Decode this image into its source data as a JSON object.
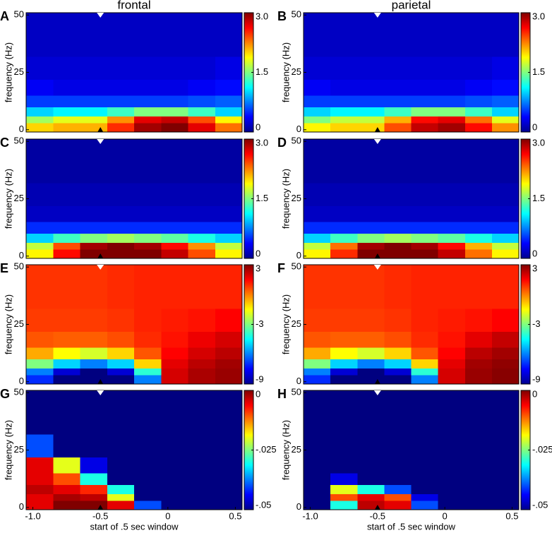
{
  "chart_data": [
    {
      "type": "heatmap",
      "panel": "A",
      "title": "frontal",
      "ylabel": "frequency (Hz)",
      "xlim": [
        -1.05,
        0.55
      ],
      "ylim": [
        -1,
        51
      ],
      "yticks": [
        0,
        25,
        50
      ],
      "marker_x": -0.5,
      "xbins": [
        -1.05,
        -0.85,
        -0.65,
        -0.45,
        -0.25,
        -0.05,
        0.15,
        0.35,
        0.55
      ],
      "ybins": [
        -1,
        3,
        6,
        10,
        15,
        22,
        32,
        51
      ],
      "clim": [
        0,
        3
      ],
      "cticks": [
        0,
        1.5,
        {
          "value": 3,
          "label": "3.0"
        }
      ],
      "z": [
        [
          2.0,
          2.1,
          2.1,
          2.5,
          2.9,
          3.0,
          2.7,
          2.3
        ],
        [
          1.6,
          1.8,
          1.8,
          2.2,
          2.7,
          2.8,
          2.4,
          1.9
        ],
        [
          1.0,
          1.1,
          1.1,
          1.3,
          1.5,
          1.5,
          1.3,
          1.0
        ],
        [
          0.55,
          0.55,
          0.55,
          0.55,
          0.55,
          0.55,
          0.6,
          0.65
        ],
        [
          0.35,
          0.3,
          0.3,
          0.3,
          0.3,
          0.3,
          0.35,
          0.4
        ],
        [
          0.25,
          0.25,
          0.25,
          0.25,
          0.25,
          0.25,
          0.25,
          0.3
        ],
        [
          0.2,
          0.2,
          0.2,
          0.2,
          0.2,
          0.2,
          0.2,
          0.2
        ]
      ]
    },
    {
      "type": "heatmap",
      "panel": "B",
      "title": "parietal",
      "ylabel": "frequency (Hz)",
      "xlim": [
        -1.05,
        0.55
      ],
      "ylim": [
        -1,
        51
      ],
      "yticks": [
        0,
        25,
        50
      ],
      "marker_x": -0.5,
      "xbins": [
        -1.05,
        -0.85,
        -0.65,
        -0.45,
        -0.25,
        -0.05,
        0.15,
        0.35,
        0.55
      ],
      "ybins": [
        -1,
        3,
        6,
        10,
        15,
        22,
        32,
        51
      ],
      "clim": [
        0,
        3
      ],
      "cticks": [
        0,
        1.5,
        {
          "value": 3,
          "label": "3.0"
        }
      ],
      "z": [
        [
          1.9,
          2.0,
          2.0,
          2.4,
          2.8,
          2.9,
          2.6,
          2.2
        ],
        [
          1.5,
          1.7,
          1.7,
          2.1,
          2.6,
          2.7,
          2.3,
          1.8
        ],
        [
          1.0,
          1.1,
          1.1,
          1.3,
          1.5,
          1.5,
          1.3,
          1.0
        ],
        [
          0.55,
          0.55,
          0.55,
          0.55,
          0.55,
          0.55,
          0.6,
          0.65
        ],
        [
          0.35,
          0.3,
          0.3,
          0.3,
          0.3,
          0.3,
          0.35,
          0.4
        ],
        [
          0.25,
          0.25,
          0.25,
          0.25,
          0.25,
          0.25,
          0.25,
          0.3
        ],
        [
          0.2,
          0.2,
          0.2,
          0.2,
          0.2,
          0.2,
          0.2,
          0.2
        ]
      ]
    },
    {
      "type": "heatmap",
      "panel": "C",
      "ylabel": "frequency (Hz)",
      "xlim": [
        -1.05,
        0.55
      ],
      "ylim": [
        -1,
        51
      ],
      "yticks": [
        0,
        25,
        50
      ],
      "marker_x": -0.5,
      "xbins": [
        -1.05,
        -0.85,
        -0.65,
        -0.45,
        -0.25,
        -0.05,
        0.15,
        0.35,
        0.55
      ],
      "ybins": [
        -1,
        3,
        6,
        10,
        15,
        22,
        32,
        51
      ],
      "clim": [
        0,
        3
      ],
      "cticks": [
        0,
        1.5,
        {
          "value": 3,
          "label": "3.0"
        }
      ],
      "z": [
        [
          1.9,
          2.6,
          3.0,
          3.0,
          3.0,
          2.8,
          2.4,
          1.9
        ],
        [
          1.7,
          2.4,
          2.9,
          3.0,
          2.9,
          2.6,
          2.2,
          1.7
        ],
        [
          1.0,
          1.3,
          1.5,
          1.6,
          1.5,
          1.4,
          1.2,
          1.0
        ],
        [
          0.5,
          0.5,
          0.5,
          0.5,
          0.5,
          0.5,
          0.5,
          0.5
        ],
        [
          0.2,
          0.2,
          0.2,
          0.2,
          0.2,
          0.2,
          0.2,
          0.2
        ],
        [
          0.15,
          0.15,
          0.15,
          0.15,
          0.15,
          0.15,
          0.15,
          0.15
        ],
        [
          0.1,
          0.1,
          0.1,
          0.1,
          0.1,
          0.1,
          0.1,
          0.1
        ]
      ]
    },
    {
      "type": "heatmap",
      "panel": "D",
      "ylabel": "frequency (Hz)",
      "xlim": [
        -1.05,
        0.55
      ],
      "ylim": [
        -1,
        51
      ],
      "yticks": [
        0,
        25,
        50
      ],
      "marker_x": -0.5,
      "xbins": [
        -1.05,
        -0.85,
        -0.65,
        -0.45,
        -0.25,
        -0.05,
        0.15,
        0.35,
        0.55
      ],
      "ybins": [
        -1,
        3,
        6,
        10,
        15,
        22,
        32,
        51
      ],
      "clim": [
        0,
        3
      ],
      "cticks": [
        0,
        1.5,
        {
          "value": 3,
          "label": "3.0"
        }
      ],
      "z": [
        [
          1.9,
          2.5,
          3.0,
          3.0,
          3.0,
          2.8,
          2.3,
          1.9
        ],
        [
          1.7,
          2.3,
          2.9,
          3.0,
          2.9,
          2.6,
          2.1,
          1.7
        ],
        [
          1.0,
          1.3,
          1.5,
          1.6,
          1.5,
          1.4,
          1.2,
          1.0
        ],
        [
          0.5,
          0.5,
          0.5,
          0.5,
          0.5,
          0.5,
          0.5,
          0.5
        ],
        [
          0.2,
          0.2,
          0.2,
          0.2,
          0.2,
          0.2,
          0.2,
          0.2
        ],
        [
          0.15,
          0.15,
          0.15,
          0.15,
          0.15,
          0.15,
          0.15,
          0.15
        ],
        [
          0.1,
          0.1,
          0.1,
          0.1,
          0.1,
          0.1,
          0.1,
          0.1
        ]
      ]
    },
    {
      "type": "heatmap",
      "panel": "E",
      "ylabel": "frequency (Hz)",
      "xlim": [
        -1.05,
        0.55
      ],
      "ylim": [
        -1,
        51
      ],
      "yticks": [
        0,
        25,
        50
      ],
      "marker_x": -0.5,
      "xbins": [
        -1.05,
        -0.85,
        -0.65,
        -0.45,
        -0.25,
        -0.05,
        0.15,
        0.35,
        0.55
      ],
      "ybins": [
        -1,
        3,
        6,
        10,
        15,
        22,
        32,
        51
      ],
      "clim": [
        -9,
        3
      ],
      "cticks": [
        -9,
        -3,
        3
      ],
      "z": [
        [
          -7,
          -9,
          -9,
          -9,
          -6,
          2,
          2.5,
          2.7
        ],
        [
          -6,
          -8,
          -9,
          -8,
          -4,
          2,
          2.5,
          2.7
        ],
        [
          -3,
          -5,
          -6,
          -5,
          -1,
          1.8,
          2.3,
          2.6
        ],
        [
          -0.5,
          -1.5,
          -2,
          -1,
          0.5,
          1.5,
          2,
          2.3
        ],
        [
          0.5,
          0.4,
          0.4,
          0.6,
          1.0,
          1.3,
          1.7,
          2.0
        ],
        [
          0.8,
          0.8,
          0.8,
          0.9,
          1.1,
          1.2,
          1.3,
          1.5
        ],
        [
          0.9,
          0.9,
          0.9,
          1.0,
          1.1,
          1.1,
          1.1,
          1.1
        ]
      ]
    },
    {
      "type": "heatmap",
      "panel": "F",
      "ylabel": "frequency (Hz)",
      "xlim": [
        -1.05,
        0.55
      ],
      "ylim": [
        -1,
        51
      ],
      "yticks": [
        0,
        25,
        50
      ],
      "marker_x": -0.5,
      "xbins": [
        -1.05,
        -0.85,
        -0.65,
        -0.45,
        -0.25,
        -0.05,
        0.15,
        0.35,
        0.55
      ],
      "ybins": [
        -1,
        3,
        6,
        10,
        15,
        22,
        32,
        51
      ],
      "clim": [
        -9,
        3
      ],
      "cticks": [
        -9,
        -3,
        3
      ],
      "z": [
        [
          -7,
          -9,
          -9,
          -9,
          -6,
          2,
          2.7,
          2.9
        ],
        [
          -6,
          -8,
          -9,
          -8,
          -4,
          2,
          2.7,
          2.9
        ],
        [
          -3,
          -5,
          -6,
          -5,
          -1,
          1.8,
          2.6,
          2.8
        ],
        [
          -0.5,
          -1.5,
          -2,
          -1,
          0.5,
          1.5,
          2.3,
          2.6
        ],
        [
          0.5,
          0.4,
          0.4,
          0.6,
          1.0,
          1.3,
          1.8,
          2.2
        ],
        [
          0.8,
          0.8,
          0.8,
          0.9,
          1.1,
          1.2,
          1.3,
          1.5
        ],
        [
          0.9,
          0.9,
          0.9,
          1.0,
          1.1,
          1.1,
          1.1,
          1.1
        ]
      ]
    },
    {
      "type": "heatmap",
      "panel": "G",
      "ylabel": "frequency (Hz)",
      "xlabel": "start of .5 sec window",
      "xlim": [
        -1.05,
        0.55
      ],
      "ylim": [
        -1,
        51
      ],
      "yticks": [
        0,
        25,
        50
      ],
      "xticks": [
        {
          "value": -1,
          "label": "-1.0"
        },
        -0.5,
        0,
        0.5
      ],
      "marker_x": -0.5,
      "xbins": [
        -1.05,
        -0.85,
        -0.65,
        -0.45,
        -0.25,
        -0.05,
        0.15,
        0.35,
        0.55
      ],
      "ybins": [
        -1,
        3,
        6,
        10,
        15,
        22,
        32,
        51
      ],
      "clim": [
        -0.05,
        0
      ],
      "cticks": [
        {
          "value": -0.05,
          "label": "-.05"
        },
        {
          "value": -0.025,
          "label": "-.025"
        },
        0
      ],
      "z": [
        [
          -0.005,
          0,
          0,
          -0.005,
          -0.04,
          -0.05,
          -0.05,
          -0.05
        ],
        [
          -0.005,
          -0.002,
          -0.003,
          -0.02,
          -0.05,
          -0.05,
          -0.05,
          -0.05
        ],
        [
          -0.003,
          -0.005,
          -0.008,
          -0.03,
          -0.05,
          -0.05,
          -0.05,
          -0.05
        ],
        [
          -0.005,
          -0.01,
          -0.03,
          -0.05,
          -0.05,
          -0.05,
          -0.05,
          -0.05
        ],
        [
          -0.005,
          -0.02,
          -0.045,
          -0.05,
          -0.05,
          -0.05,
          -0.05,
          -0.05
        ],
        [
          -0.04,
          -0.05,
          -0.05,
          -0.05,
          -0.05,
          -0.05,
          -0.05,
          -0.05
        ],
        [
          -0.05,
          -0.05,
          -0.05,
          -0.05,
          -0.05,
          -0.05,
          -0.05,
          -0.05
        ]
      ]
    },
    {
      "type": "heatmap",
      "panel": "H",
      "ylabel": "frequency (Hz)",
      "xlabel": "start of .5 sec window",
      "xlim": [
        -1.05,
        0.55
      ],
      "ylim": [
        -1,
        51
      ],
      "yticks": [
        0,
        25,
        50
      ],
      "xticks": [
        {
          "value": -1,
          "label": "-1.0"
        },
        -0.5,
        0,
        0.5
      ],
      "marker_x": -0.5,
      "xbins": [
        -1.05,
        -0.85,
        -0.65,
        -0.45,
        -0.25,
        -0.05,
        0.15,
        0.35,
        0.55
      ],
      "ybins": [
        -1,
        3,
        6,
        10,
        15,
        22,
        32,
        51
      ],
      "clim": [
        -0.05,
        0
      ],
      "cticks": [
        {
          "value": -0.05,
          "label": "-.05"
        },
        {
          "value": -0.025,
          "label": "-.025"
        },
        0
      ],
      "z": [
        [
          -0.05,
          -0.03,
          -0.003,
          -0.005,
          -0.04,
          -0.05,
          -0.05,
          -0.05
        ],
        [
          -0.05,
          -0.01,
          -0.005,
          -0.01,
          -0.045,
          -0.05,
          -0.05,
          -0.05
        ],
        [
          -0.05,
          -0.02,
          -0.03,
          -0.04,
          -0.05,
          -0.05,
          -0.05,
          -0.05
        ],
        [
          -0.05,
          -0.045,
          -0.05,
          -0.05,
          -0.05,
          -0.05,
          -0.05,
          -0.05
        ],
        [
          -0.05,
          -0.05,
          -0.05,
          -0.05,
          -0.05,
          -0.05,
          -0.05,
          -0.05
        ],
        [
          -0.05,
          -0.05,
          -0.05,
          -0.05,
          -0.05,
          -0.05,
          -0.05,
          -0.05
        ],
        [
          -0.05,
          -0.05,
          -0.05,
          -0.05,
          -0.05,
          -0.05,
          -0.05,
          -0.05
        ]
      ]
    }
  ]
}
